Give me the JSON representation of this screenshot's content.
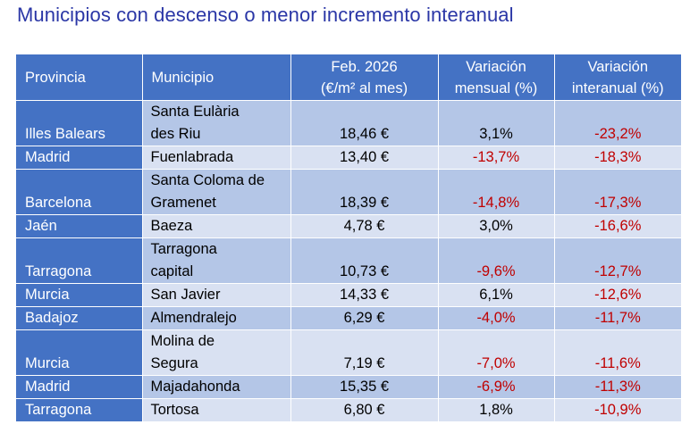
{
  "title": "Municipios con descenso o menor incremento interanual",
  "table": {
    "headers": {
      "provincia": "Provincia",
      "municipio": "Municipio",
      "precio_l1": "Feb. 2026",
      "precio_l2": "(€/m² al mes)",
      "mensual_l1": "Variación",
      "mensual_l2": "mensual (%)",
      "interanual_l1": "Variación",
      "interanual_l2": "interanual (%)"
    },
    "rows": [
      {
        "provincia": "Illes Balears",
        "municipio_l1": "Santa Eulària",
        "municipio_l2": "des Riu",
        "precio": "18,46 €",
        "mensual": "3,1%",
        "interanual": "-23,2%"
      },
      {
        "provincia": "Madrid",
        "municipio_l1": "Fuenlabrada",
        "municipio_l2": "",
        "precio": "13,40 €",
        "mensual": "-13,7%",
        "interanual": "-18,3%"
      },
      {
        "provincia": "Barcelona",
        "municipio_l1": "Santa Coloma de",
        "municipio_l2": "Gramenet",
        "precio": "18,39 €",
        "mensual": "-14,8%",
        "interanual": "-17,3%"
      },
      {
        "provincia": "Jaén",
        "municipio_l1": "Baeza",
        "municipio_l2": "",
        "precio": "4,78 €",
        "mensual": "3,0%",
        "interanual": "-16,6%"
      },
      {
        "provincia": "Tarragona",
        "municipio_l1": "Tarragona",
        "municipio_l2": "capital",
        "precio": "10,73 €",
        "mensual": "-9,6%",
        "interanual": "-12,7%"
      },
      {
        "provincia": "Murcia",
        "municipio_l1": "San Javier",
        "municipio_l2": "",
        "precio": "14,33 €",
        "mensual": "6,1%",
        "interanual": "-12,6%"
      },
      {
        "provincia": "Badajoz",
        "municipio_l1": "Almendralejo",
        "municipio_l2": "",
        "precio": "6,29 €",
        "mensual": "-4,0%",
        "interanual": "-11,7%"
      },
      {
        "provincia": "Murcia",
        "municipio_l1": "Molina de",
        "municipio_l2": "Segura",
        "precio": "7,19 €",
        "mensual": "-7,0%",
        "interanual": "-11,6%"
      },
      {
        "provincia": "Madrid",
        "municipio_l1": "Majadahonda",
        "municipio_l2": "",
        "precio": "15,35 €",
        "mensual": "-6,9%",
        "interanual": "-11,3%"
      },
      {
        "provincia": "Tarragona",
        "municipio_l1": "Tortosa",
        "municipio_l2": "",
        "precio": "6,80 €",
        "mensual": "1,8%",
        "interanual": "-10,9%"
      }
    ]
  },
  "colors": {
    "title": "#2a36a6",
    "header_bg": "#4472c4",
    "row_odd": "#b4c6e7",
    "row_even": "#d9e1f2",
    "negative": "#c00000"
  }
}
